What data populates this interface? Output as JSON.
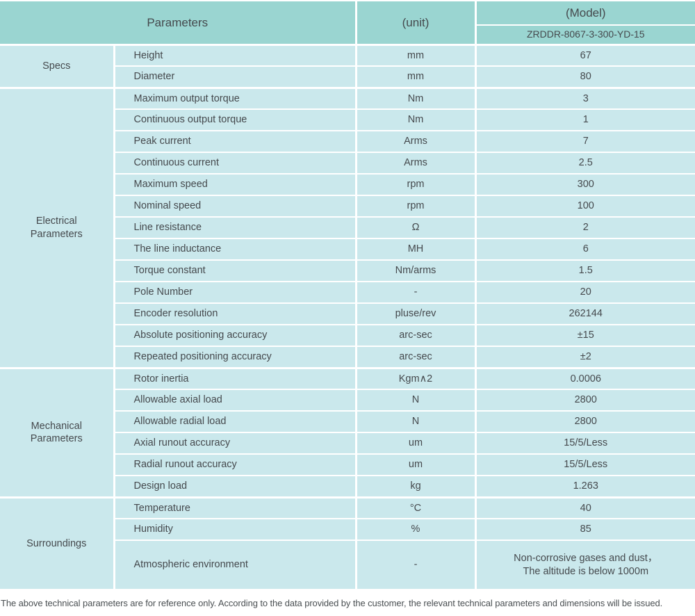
{
  "colors": {
    "header_bg": "#9ad5d1",
    "cell_bg": "#cae8ec",
    "divider": "#ffffff",
    "text": "#45494d"
  },
  "table": {
    "header": {
      "parameters_label": "Parameters",
      "unit_label": "(unit)",
      "model_label": "(Model)",
      "model_value": "ZRDDR-8067-3-300-YD-15"
    },
    "sections": [
      {
        "label_lines": [
          "Specs"
        ],
        "rows": [
          {
            "param": "Height",
            "unit": "mm",
            "value": "67"
          },
          {
            "param": "Diameter",
            "unit": "mm",
            "value": "80"
          }
        ]
      },
      {
        "label_lines": [
          "Electrical",
          "Parameters"
        ],
        "rows": [
          {
            "param": "Maximum output torque",
            "unit": "Nm",
            "value": "3"
          },
          {
            "param": "Continuous output torque",
            "unit": "Nm",
            "value": "1"
          },
          {
            "param": "Peak current",
            "unit": "Arms",
            "value": "7"
          },
          {
            "param": "Continuous current",
            "unit": "Arms",
            "value": "2.5"
          },
          {
            "param": "Maximum speed",
            "unit": "rpm",
            "value": "300"
          },
          {
            "param": "Nominal speed",
            "unit": "rpm",
            "value": "100"
          },
          {
            "param": "Line resistance",
            "unit": "Ω",
            "value": "2"
          },
          {
            "param": "The line inductance",
            "unit": "MH",
            "value": "6"
          },
          {
            "param": "Torque constant",
            "unit": "Nm/arms",
            "value": "1.5"
          },
          {
            "param": "Pole Number",
            "unit": "-",
            "value": "20"
          },
          {
            "param": "Encoder resolution",
            "unit": "pluse/rev",
            "value": "262144"
          },
          {
            "param": "Absolute positioning accuracy",
            "unit": "arc-sec",
            "value": "±15"
          },
          {
            "param": "Repeated positioning accuracy",
            "unit": "arc-sec",
            "value": "±2"
          }
        ]
      },
      {
        "label_lines": [
          "Mechanical",
          "Parameters"
        ],
        "rows": [
          {
            "param": "Rotor inertia",
            "unit": "Kgm∧2",
            "value": "0.0006"
          },
          {
            "param": "Allowable axial load",
            "unit": "N",
            "value": "2800"
          },
          {
            "param": "Allowable radial load",
            "unit": "N",
            "value": "2800"
          },
          {
            "param": "Axial runout accuracy",
            "unit": "um",
            "value": "15/5/Less"
          },
          {
            "param": "Radial runout accuracy",
            "unit": "um",
            "value": "15/5/Less"
          },
          {
            "param": "Design load",
            "unit": "kg",
            "value": "1.263"
          }
        ]
      },
      {
        "label_lines": [
          "Surroundings"
        ],
        "rows": [
          {
            "param": "Temperature",
            "unit": "°C",
            "value": "40"
          },
          {
            "param": "Humidity",
            "unit": "%",
            "value": "85"
          },
          {
            "param": "Atmospheric environment",
            "unit": "-",
            "value_lines": [
              "Non-corrosive gases and dust，",
              "The altitude is below 1000m"
            ],
            "tall": true
          }
        ]
      }
    ],
    "footnote": "The above technical parameters are for reference only. According to the data provided by the customer, the relevant technical parameters and dimensions will be issued."
  }
}
